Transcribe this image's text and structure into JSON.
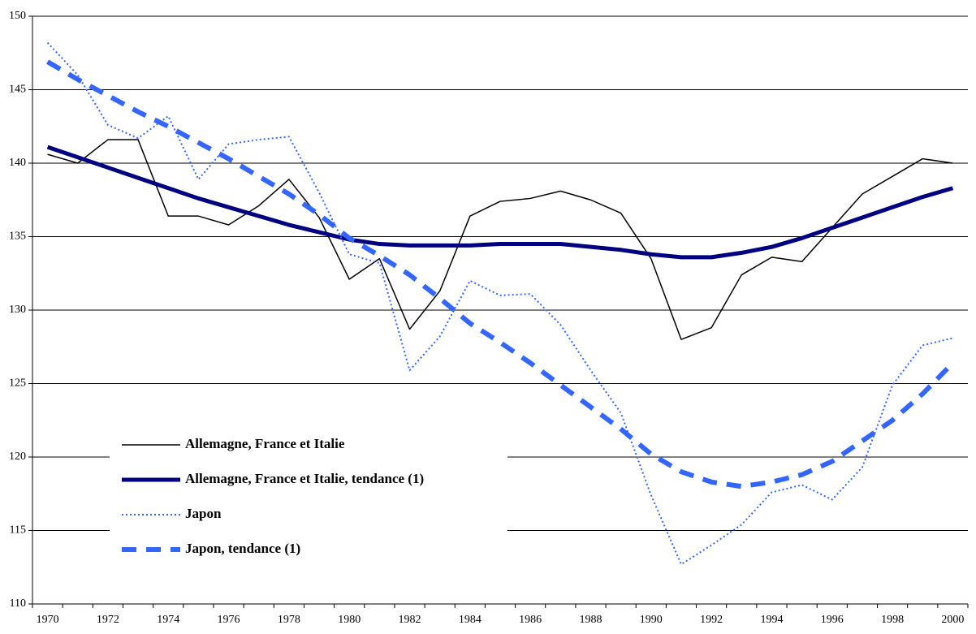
{
  "chart_data": {
    "type": "line",
    "categories": [
      "1970",
      null,
      "1972",
      null,
      "1974",
      null,
      "1976",
      null,
      "1978",
      null,
      "1980",
      null,
      "1982",
      null,
      "1984",
      null,
      "1986",
      null,
      "1988",
      null,
      "1990",
      null,
      "1992",
      null,
      "1994",
      null,
      "1996",
      null,
      "1998",
      null,
      "2000"
    ],
    "series": [
      {
        "name": "Allemagne, France et Italie",
        "color": "#000000",
        "style": "thin",
        "values": [
          140.6,
          140.0,
          141.6,
          141.6,
          136.4,
          136.4,
          135.8,
          137.1,
          138.9,
          136.3,
          132.1,
          133.5,
          128.7,
          131.3,
          136.4,
          137.4,
          137.6,
          138.1,
          137.5,
          136.6,
          133.5,
          128.0,
          128.8,
          132.4,
          133.6,
          133.3,
          135.6,
          137.9,
          139.1,
          140.3,
          140.0
        ]
      },
      {
        "name": "Allemagne, France et Italie, tendance (1)",
        "color": "#000080",
        "style": "thick",
        "values": [
          141.1,
          140.4,
          139.7,
          139.0,
          138.3,
          137.6,
          137.0,
          136.4,
          135.8,
          135.3,
          134.8,
          134.5,
          134.4,
          134.4,
          134.4,
          134.5,
          134.5,
          134.5,
          134.3,
          134.1,
          133.8,
          133.6,
          133.6,
          133.9,
          134.3,
          134.9,
          135.6,
          136.3,
          137.0,
          137.7,
          138.3
        ]
      },
      {
        "name": "Japon",
        "color": "#3366ff",
        "style": "dotted",
        "values": [
          148.2,
          146.0,
          142.6,
          141.7,
          143.2,
          138.9,
          141.3,
          141.6,
          141.8,
          138.0,
          133.8,
          133.2,
          125.9,
          128.2,
          132.0,
          131.0,
          131.1,
          129.0,
          125.9,
          123.0,
          117.4,
          112.7,
          114.0,
          115.4,
          117.6,
          118.1,
          117.1,
          119.3,
          124.9,
          127.6,
          128.1
        ]
      },
      {
        "name": "Japon, tendance (1)",
        "color": "#3366ff",
        "style": "dashed",
        "values": [
          146.9,
          145.7,
          144.6,
          143.5,
          142.5,
          141.4,
          140.3,
          139.1,
          137.9,
          136.5,
          134.9,
          133.7,
          132.4,
          130.8,
          129.1,
          127.8,
          126.4,
          124.9,
          123.4,
          121.9,
          120.2,
          119.0,
          118.3,
          118.0,
          118.3,
          118.8,
          119.7,
          121.1,
          122.5,
          124.3,
          126.4
        ]
      }
    ],
    "ylim": [
      110,
      150
    ],
    "yticks": [
      110,
      115,
      120,
      125,
      130,
      135,
      140,
      145,
      150
    ],
    "grid": true,
    "legend": "lower left"
  }
}
